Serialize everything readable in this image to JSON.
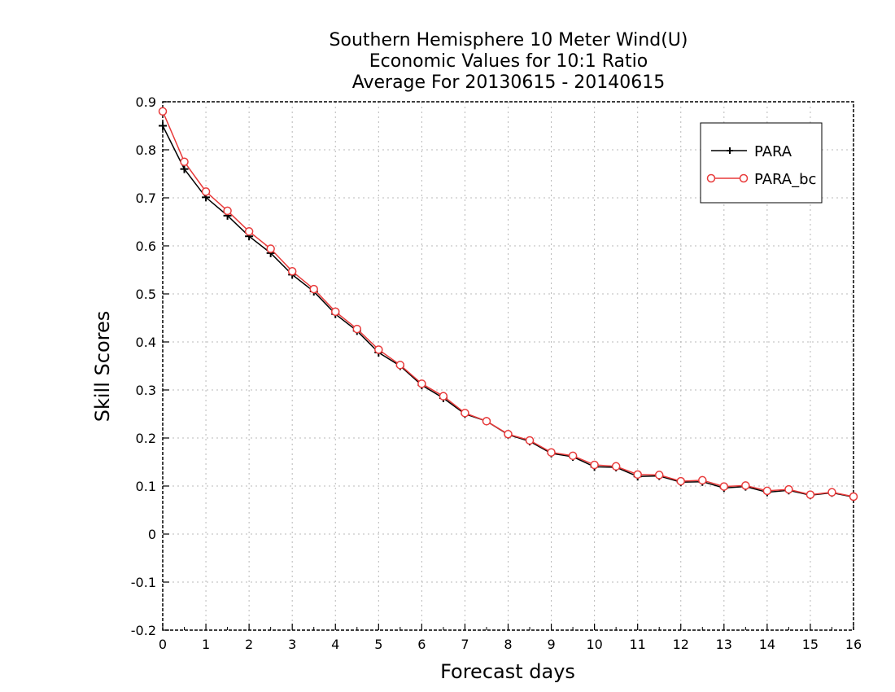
{
  "chart_data": {
    "type": "line",
    "title": [
      "Southern Hemisphere 10 Meter Wind(U)",
      "Economic Values for 10:1 Ratio",
      "Average For 20130615 - 20140615"
    ],
    "xlabel": "Forecast days",
    "ylabel": "Skill Scores",
    "xlim": [
      0,
      16
    ],
    "ylim": [
      -0.2,
      0.9
    ],
    "x_ticks": [
      0,
      1,
      2,
      3,
      4,
      5,
      6,
      7,
      8,
      9,
      10,
      11,
      12,
      13,
      14,
      15,
      16
    ],
    "y_ticks": [
      -0.2,
      -0.1,
      0,
      0.1,
      0.2,
      0.3,
      0.4,
      0.5,
      0.6,
      0.7,
      0.8,
      0.9
    ],
    "y_tick_labels": [
      "-0.2",
      "-0.1",
      "0",
      "0.1",
      "0.2",
      "0.3",
      "0.4",
      "0.5",
      "0.6",
      "0.7",
      "0.8",
      "0.9"
    ],
    "grid": true,
    "legend_position": "top-right",
    "x": [
      0,
      0.5,
      1,
      1.5,
      2,
      2.5,
      3,
      3.5,
      4,
      4.5,
      5,
      5.5,
      6,
      6.5,
      7,
      7.5,
      8,
      8.5,
      9,
      9.5,
      10,
      10.5,
      11,
      11.5,
      12,
      12.5,
      13,
      13.5,
      14,
      14.5,
      15,
      15.5,
      16
    ],
    "series": [
      {
        "name": "PARA",
        "color": "#000000",
        "marker": "plus",
        "values": [
          0.85,
          0.76,
          0.701,
          0.663,
          0.62,
          0.585,
          0.54,
          0.505,
          0.458,
          0.423,
          0.378,
          0.35,
          0.31,
          0.283,
          0.25,
          0.235,
          0.207,
          0.193,
          0.168,
          0.161,
          0.14,
          0.139,
          0.12,
          0.121,
          0.108,
          0.109,
          0.096,
          0.099,
          0.087,
          0.091,
          0.081,
          0.086,
          0.077
        ]
      },
      {
        "name": "PARA_bc",
        "color": "#ff0000",
        "marker": "circle",
        "values": [
          0.88,
          0.775,
          0.713,
          0.673,
          0.63,
          0.594,
          0.547,
          0.51,
          0.463,
          0.427,
          0.384,
          0.352,
          0.313,
          0.287,
          0.252,
          0.235,
          0.208,
          0.195,
          0.17,
          0.163,
          0.144,
          0.141,
          0.124,
          0.123,
          0.11,
          0.112,
          0.099,
          0.101,
          0.09,
          0.093,
          0.082,
          0.087,
          0.078
        ]
      }
    ]
  }
}
